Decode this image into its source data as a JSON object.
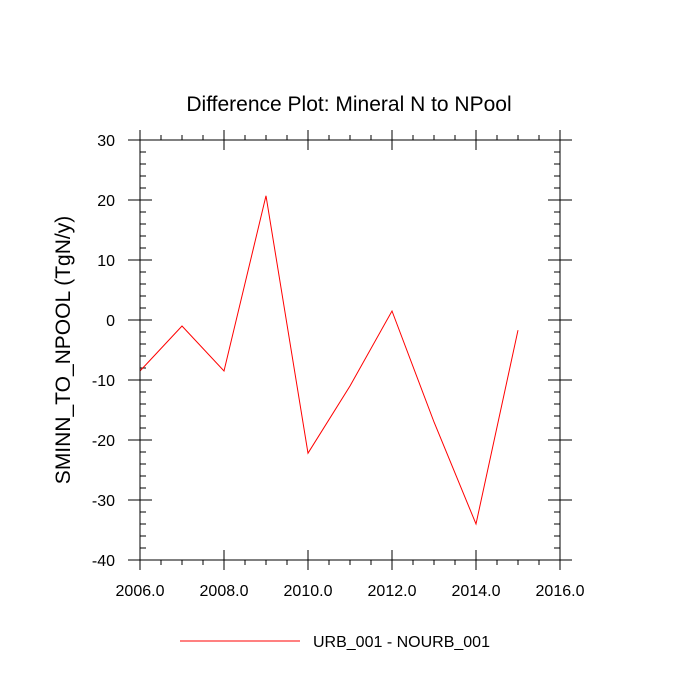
{
  "chart_data": {
    "type": "line",
    "title": "Difference Plot: Mineral N to NPool",
    "ylabel": "SMINN_TO_NPOOL  (TgN/y)",
    "xlabel": "",
    "xlim": [
      2006,
      2016
    ],
    "ylim": [
      -40,
      30
    ],
    "x_ticks": [
      2006,
      2008,
      2010,
      2012,
      2014,
      2016
    ],
    "x_tick_labels": [
      "2006.0",
      "2008.0",
      "2010.0",
      "2012.0",
      "2014.0",
      "2016.0"
    ],
    "y_ticks": [
      -40,
      -30,
      -20,
      -10,
      0,
      10,
      20,
      30
    ],
    "y_tick_labels": [
      "-40",
      "-30",
      "-20",
      "-10",
      "0",
      "10",
      "20",
      "30"
    ],
    "grid": false,
    "legend_position": "bottom-center",
    "series": [
      {
        "name": "URB_001 - NOURB_001",
        "color": "#ff0000",
        "x": [
          2006,
          2007,
          2008,
          2009,
          2010,
          2011,
          2012,
          2013,
          2014,
          2015
        ],
        "y": [
          -8.5,
          -1.0,
          -8.5,
          20.7,
          -22.2,
          -11.0,
          1.5,
          -17.0,
          -34.0,
          -1.7
        ]
      }
    ]
  }
}
